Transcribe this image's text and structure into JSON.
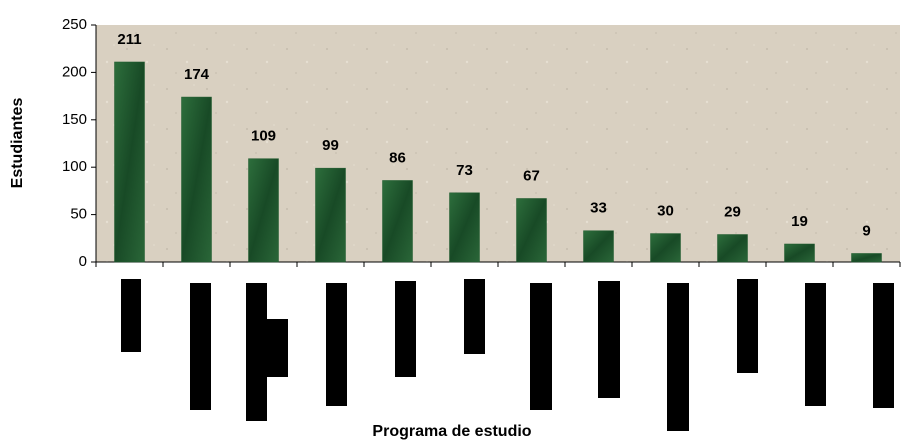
{
  "chart_data": {
    "type": "bar",
    "y_label": "Estudiantes",
    "x_label": "Programa de estudio",
    "categories": [
      null,
      null,
      null,
      null,
      null,
      null,
      null,
      null,
      null,
      null,
      null,
      null
    ],
    "values": [
      211,
      174,
      109,
      99,
      86,
      73,
      67,
      33,
      30,
      29,
      19,
      9
    ],
    "color": "#1f5a2e",
    "ylim": [
      0,
      250
    ],
    "yticks": [
      0,
      50,
      100,
      150,
      200,
      250
    ]
  }
}
